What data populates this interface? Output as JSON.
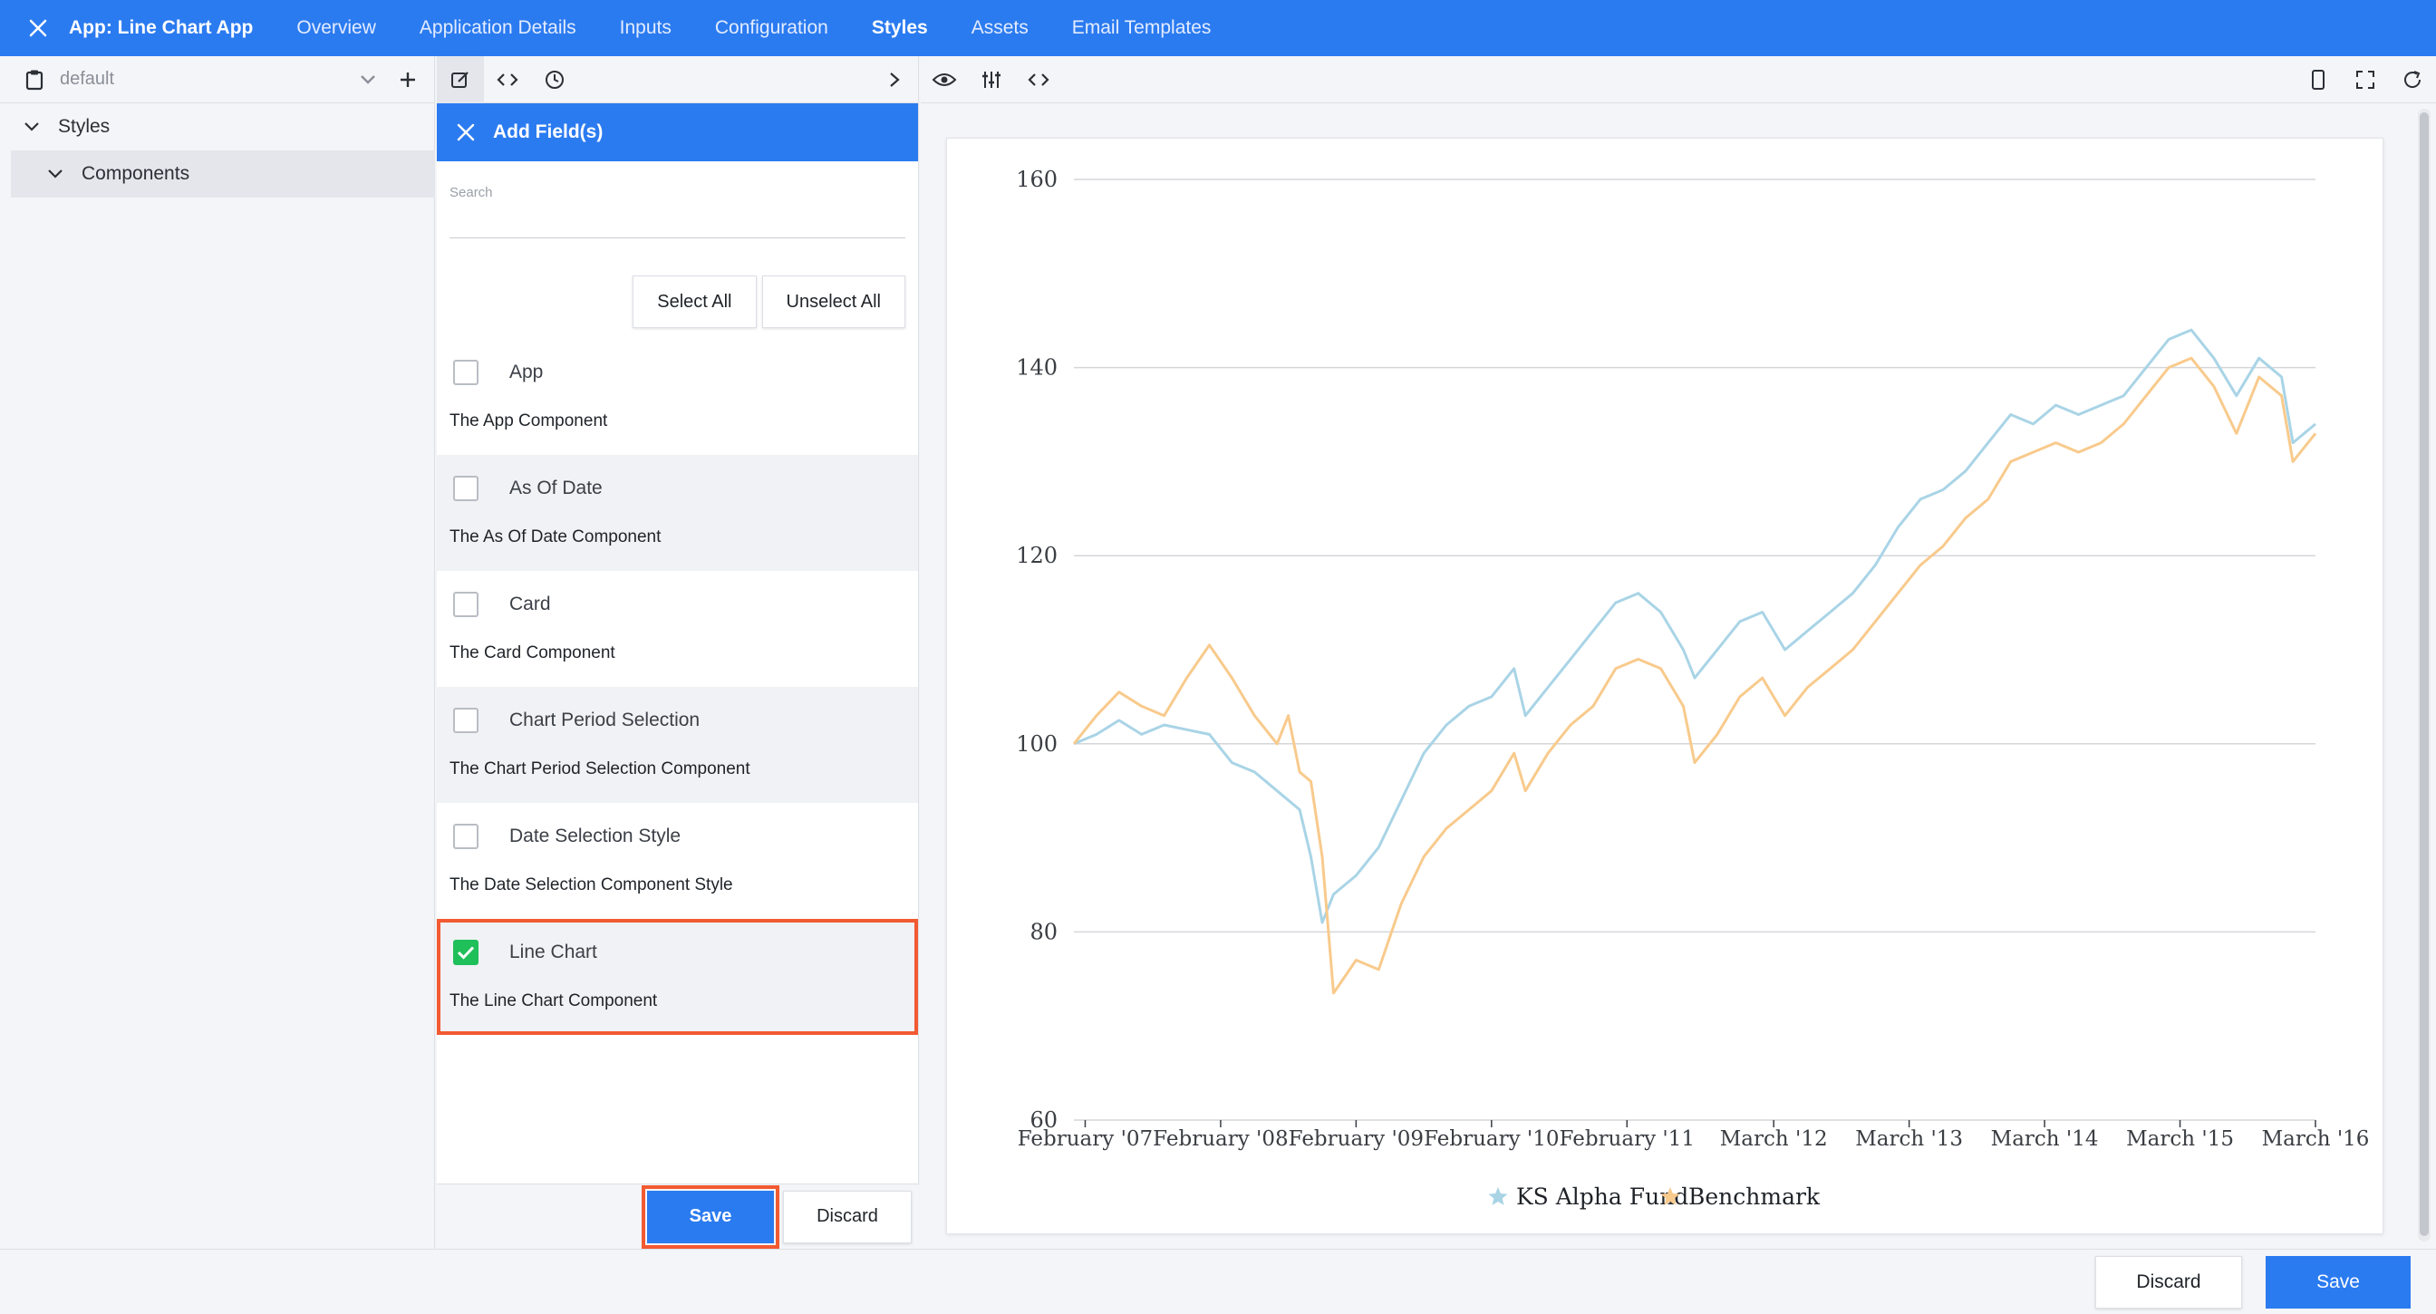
{
  "topbar": {
    "app_title": "App: Line Chart App",
    "tabs": [
      {
        "label": "Overview",
        "active": false
      },
      {
        "label": "Application Details",
        "active": false
      },
      {
        "label": "Inputs",
        "active": false
      },
      {
        "label": "Configuration",
        "active": false
      },
      {
        "label": "Styles",
        "active": true
      },
      {
        "label": "Assets",
        "active": false
      },
      {
        "label": "Email Templates",
        "active": false
      }
    ]
  },
  "left_panel": {
    "theme_name": "default",
    "tree": [
      {
        "label": "Styles",
        "level": 0
      },
      {
        "label": "Components",
        "level": 1
      }
    ]
  },
  "add_fields": {
    "title": "Add Field(s)",
    "search_label": "Search",
    "search_value": "",
    "select_all_label": "Select All",
    "unselect_all_label": "Unselect All",
    "items": [
      {
        "name": "App",
        "description": "The App Component",
        "checked": false
      },
      {
        "name": "As Of Date",
        "description": "The As Of Date Component",
        "checked": false
      },
      {
        "name": "Card",
        "description": "The Card Component",
        "checked": false
      },
      {
        "name": "Chart Period Selection",
        "description": "The Chart Period Selection Component",
        "checked": false
      },
      {
        "name": "Date Selection Style",
        "description": "The Date Selection Component Style",
        "checked": false
      },
      {
        "name": "Line Chart",
        "description": "The Line Chart Component",
        "checked": true
      }
    ],
    "save_label": "Save",
    "discard_label": "Discard"
  },
  "bottom": {
    "discard_label": "Discard",
    "save_label": "Save"
  },
  "colors": {
    "accent": "#2b7bf0",
    "highlight": "#f25a32",
    "checked": "#1fbf5a",
    "series_fund": "#a9d4e6",
    "series_benchmark": "#f8ca8c"
  },
  "chart_data": {
    "type": "line",
    "ylim": [
      60,
      160
    ],
    "yticks": [
      "60",
      "80",
      "100",
      "120",
      "140",
      "160"
    ],
    "xlim": [
      "2007-01",
      "2016-03"
    ],
    "xticks": [
      {
        "label": "February '07",
        "date": "2007-02"
      },
      {
        "label": "February '08",
        "date": "2008-02"
      },
      {
        "label": "February '09",
        "date": "2009-02"
      },
      {
        "label": "February '10",
        "date": "2010-02"
      },
      {
        "label": "February '11",
        "date": "2011-02"
      },
      {
        "label": "March '12",
        "date": "2012-03"
      },
      {
        "label": "March '13",
        "date": "2013-03"
      },
      {
        "label": "March '14",
        "date": "2014-03"
      },
      {
        "label": "March '15",
        "date": "2015-03"
      },
      {
        "label": "March '16",
        "date": "2016-03"
      }
    ],
    "grid": true,
    "legend_position": "bottom-center",
    "series": [
      {
        "name": "KS Alpha Fund",
        "color": "#a9d4e6",
        "points": [
          [
            "2007-01",
            100
          ],
          [
            "2007-03",
            101
          ],
          [
            "2007-05",
            102.5
          ],
          [
            "2007-07",
            101
          ],
          [
            "2007-09",
            102
          ],
          [
            "2007-11",
            101.5
          ],
          [
            "2008-01",
            101
          ],
          [
            "2008-03",
            98
          ],
          [
            "2008-05",
            97
          ],
          [
            "2008-07",
            95
          ],
          [
            "2008-09",
            93
          ],
          [
            "2008-10",
            88
          ],
          [
            "2008-11",
            81
          ],
          [
            "2008-12",
            84
          ],
          [
            "2009-02",
            86
          ],
          [
            "2009-04",
            89
          ],
          [
            "2009-06",
            94
          ],
          [
            "2009-08",
            99
          ],
          [
            "2009-10",
            102
          ],
          [
            "2009-12",
            104
          ],
          [
            "2010-02",
            105
          ],
          [
            "2010-04",
            108
          ],
          [
            "2010-05",
            103
          ],
          [
            "2010-07",
            106
          ],
          [
            "2010-09",
            109
          ],
          [
            "2010-11",
            112
          ],
          [
            "2011-01",
            115
          ],
          [
            "2011-03",
            116
          ],
          [
            "2011-05",
            114
          ],
          [
            "2011-07",
            110
          ],
          [
            "2011-08",
            107
          ],
          [
            "2011-10",
            110
          ],
          [
            "2011-12",
            113
          ],
          [
            "2012-02",
            114
          ],
          [
            "2012-04",
            110
          ],
          [
            "2012-06",
            112
          ],
          [
            "2012-08",
            114
          ],
          [
            "2012-10",
            116
          ],
          [
            "2012-12",
            119
          ],
          [
            "2013-02",
            123
          ],
          [
            "2013-04",
            126
          ],
          [
            "2013-06",
            127
          ],
          [
            "2013-08",
            129
          ],
          [
            "2013-10",
            132
          ],
          [
            "2013-12",
            135
          ],
          [
            "2014-02",
            134
          ],
          [
            "2014-04",
            136
          ],
          [
            "2014-06",
            135
          ],
          [
            "2014-08",
            136
          ],
          [
            "2014-10",
            137
          ],
          [
            "2014-12",
            140
          ],
          [
            "2015-02",
            143
          ],
          [
            "2015-04",
            144
          ],
          [
            "2015-06",
            141
          ],
          [
            "2015-08",
            137
          ],
          [
            "2015-10",
            141
          ],
          [
            "2015-12",
            139
          ],
          [
            "2016-01",
            132
          ],
          [
            "2016-03",
            134
          ]
        ]
      },
      {
        "name": "Benchmark",
        "color": "#f8ca8c",
        "points": [
          [
            "2007-01",
            100
          ],
          [
            "2007-03",
            103
          ],
          [
            "2007-05",
            105.5
          ],
          [
            "2007-07",
            104
          ],
          [
            "2007-09",
            103
          ],
          [
            "2007-11",
            107
          ],
          [
            "2008-01",
            110.5
          ],
          [
            "2008-03",
            107
          ],
          [
            "2008-05",
            103
          ],
          [
            "2008-07",
            100
          ],
          [
            "2008-08",
            103
          ],
          [
            "2008-09",
            97
          ],
          [
            "2008-10",
            96
          ],
          [
            "2008-11",
            88
          ],
          [
            "2008-12",
            73.5
          ],
          [
            "2009-02",
            77
          ],
          [
            "2009-04",
            76
          ],
          [
            "2009-06",
            83
          ],
          [
            "2009-08",
            88
          ],
          [
            "2009-10",
            91
          ],
          [
            "2009-12",
            93
          ],
          [
            "2010-02",
            95
          ],
          [
            "2010-04",
            99
          ],
          [
            "2010-05",
            95
          ],
          [
            "2010-07",
            99
          ],
          [
            "2010-09",
            102
          ],
          [
            "2010-11",
            104
          ],
          [
            "2011-01",
            108
          ],
          [
            "2011-03",
            109
          ],
          [
            "2011-05",
            108
          ],
          [
            "2011-07",
            104
          ],
          [
            "2011-08",
            98
          ],
          [
            "2011-10",
            101
          ],
          [
            "2011-12",
            105
          ],
          [
            "2012-02",
            107
          ],
          [
            "2012-04",
            103
          ],
          [
            "2012-06",
            106
          ],
          [
            "2012-08",
            108
          ],
          [
            "2012-10",
            110
          ],
          [
            "2012-12",
            113
          ],
          [
            "2013-02",
            116
          ],
          [
            "2013-04",
            119
          ],
          [
            "2013-06",
            121
          ],
          [
            "2013-08",
            124
          ],
          [
            "2013-10",
            126
          ],
          [
            "2013-12",
            130
          ],
          [
            "2014-02",
            131
          ],
          [
            "2014-04",
            132
          ],
          [
            "2014-06",
            131
          ],
          [
            "2014-08",
            132
          ],
          [
            "2014-10",
            134
          ],
          [
            "2014-12",
            137
          ],
          [
            "2015-02",
            140
          ],
          [
            "2015-04",
            141
          ],
          [
            "2015-06",
            138
          ],
          [
            "2015-08",
            133
          ],
          [
            "2015-10",
            139
          ],
          [
            "2015-12",
            137
          ],
          [
            "2016-01",
            130
          ],
          [
            "2016-03",
            133
          ]
        ]
      }
    ]
  }
}
